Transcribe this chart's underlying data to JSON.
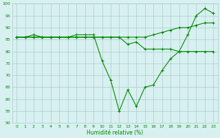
{
  "xlabel": "Humidité relative (%)",
  "x": [
    0,
    1,
    2,
    3,
    4,
    5,
    6,
    7,
    8,
    9,
    10,
    11,
    12,
    13,
    14,
    15,
    16,
    17,
    18,
    19,
    20,
    21,
    22,
    23
  ],
  "line1": [
    86,
    86,
    87,
    86,
    86,
    86,
    86,
    87,
    87,
    87,
    76,
    68,
    55,
    64,
    57,
    65,
    66,
    72,
    77,
    80,
    87,
    95,
    98,
    96
  ],
  "line2": [
    86,
    86,
    86,
    86,
    86,
    86,
    86,
    86,
    86,
    86,
    86,
    86,
    86,
    86,
    86,
    86,
    87,
    88,
    89,
    90,
    90,
    91,
    92,
    92
  ],
  "line3": [
    86,
    86,
    86,
    86,
    86,
    86,
    86,
    86,
    86,
    86,
    86,
    86,
    86,
    83,
    84,
    81,
    81,
    81,
    81,
    80,
    80,
    80,
    80,
    80
  ],
  "color": "#008800",
  "bg_color": "#d8f0f0",
  "grid_color": "#aacccc",
  "ylim": [
    50,
    100
  ],
  "xlim_min": -0.5,
  "xlim_max": 23.5,
  "yticks": [
    50,
    55,
    60,
    65,
    70,
    75,
    80,
    85,
    90,
    95,
    100
  ],
  "xticks": [
    0,
    1,
    2,
    3,
    4,
    5,
    6,
    7,
    8,
    9,
    10,
    11,
    12,
    13,
    14,
    15,
    16,
    17,
    18,
    19,
    20,
    21,
    22,
    23
  ],
  "tick_fontsize": 4.5,
  "xlabel_fontsize": 5.5,
  "linewidth": 0.8,
  "markersize": 3
}
